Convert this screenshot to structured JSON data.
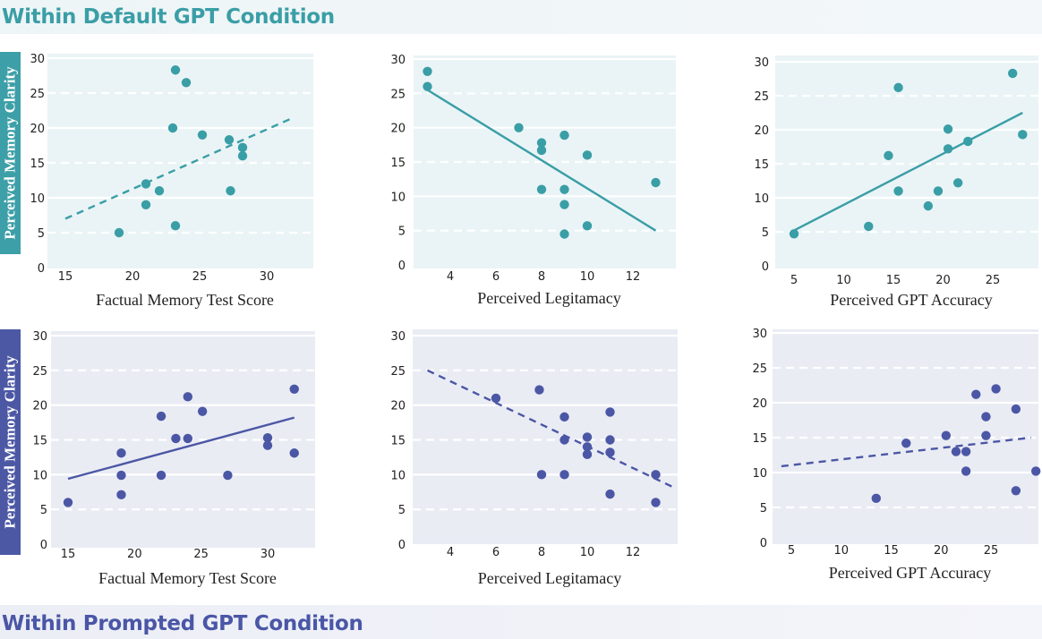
{
  "header": {
    "top_title": "Within Default GPT Condition",
    "bottom_title": "Within Prompted GPT Condition"
  },
  "row_labels": {
    "top": "Perceived Memory Clarity",
    "bottom": "Perceived Memory Clarity"
  },
  "colors": {
    "teal": "#3a9ea6",
    "blue": "#4b57a5",
    "teal_bg": "#eaf4f6",
    "blue_bg": "#eaecf4"
  },
  "chart_data": [
    {
      "type": "scatter",
      "condition": "Default GPT",
      "title": "",
      "xlabel": "Factual Memory Test Score",
      "ylabel": "Perceived Memory Clarity",
      "xlim": [
        14,
        34
      ],
      "ylim": [
        0,
        30
      ],
      "xticks": [
        15,
        20,
        25,
        30
      ],
      "xtick_labels": [
        "15",
        "20",
        "25",
        "30"
      ],
      "yticks": [
        0,
        5,
        10,
        15,
        20,
        25,
        30
      ],
      "ytick_labels": [
        "0",
        "5",
        "10",
        "15",
        "20",
        "25",
        "30"
      ],
      "grid": true,
      "trendline_style": "dashed",
      "trendline": {
        "x": [
          15,
          32
        ],
        "y": [
          7,
          21.5
        ]
      },
      "points": [
        [
          19,
          5
        ],
        [
          21,
          9
        ],
        [
          21,
          12
        ],
        [
          22,
          11
        ],
        [
          23,
          20
        ],
        [
          23.2,
          6
        ],
        [
          23.2,
          28.3
        ],
        [
          24,
          26.5
        ],
        [
          25.2,
          19
        ],
        [
          27.2,
          18.3
        ],
        [
          27.3,
          11
        ],
        [
          28.2,
          17.2
        ],
        [
          28.2,
          16
        ]
      ]
    },
    {
      "type": "scatter",
      "condition": "Default GPT",
      "title": "",
      "xlabel": "Perceived Legitamacy",
      "ylabel": "Perceived Memory Clarity",
      "xlim": [
        2.2,
        14
      ],
      "ylim": [
        0,
        30
      ],
      "xticks": [
        4,
        6,
        8,
        10,
        12
      ],
      "xtick_labels": [
        "4",
        "6",
        "8",
        "10",
        "12"
      ],
      "yticks": [
        0,
        5,
        10,
        15,
        20,
        25,
        30
      ],
      "ytick_labels": [
        "0",
        "5",
        "10",
        "15",
        "20",
        "25",
        "30"
      ],
      "grid": true,
      "trendline_style": "solid",
      "trendline": {
        "x": [
          3,
          13
        ],
        "y": [
          25.5,
          5
        ]
      },
      "points": [
        [
          3,
          28.2
        ],
        [
          3,
          26
        ],
        [
          7,
          20
        ],
        [
          8,
          17.8
        ],
        [
          8,
          16.7
        ],
        [
          8,
          11
        ],
        [
          9,
          18.9
        ],
        [
          9,
          11
        ],
        [
          9,
          8.8
        ],
        [
          9,
          4.5
        ],
        [
          10,
          16
        ],
        [
          10,
          5.7
        ],
        [
          13,
          12
        ]
      ]
    },
    {
      "type": "scatter",
      "condition": "Default GPT",
      "title": "",
      "xlabel": "Perceived GPT Accuracy",
      "ylabel": "Perceived Memory Clarity",
      "xlim": [
        3,
        29
      ],
      "ylim": [
        0,
        30
      ],
      "xticks": [
        5,
        10,
        15,
        20,
        25
      ],
      "xtick_labels": [
        "5",
        "10",
        "15",
        "20",
        "25"
      ],
      "yticks": [
        0,
        5,
        10,
        15,
        20,
        25,
        30
      ],
      "ytick_labels": [
        "0",
        "5",
        "10",
        "15",
        "20",
        "25",
        "30"
      ],
      "grid": true,
      "trendline_style": "solid",
      "trendline": {
        "x": [
          5,
          28
        ],
        "y": [
          5.2,
          22.5
        ]
      },
      "points": [
        [
          5,
          4.7
        ],
        [
          12.5,
          5.8
        ],
        [
          14.5,
          16.2
        ],
        [
          15.5,
          26.2
        ],
        [
          15.5,
          11
        ],
        [
          18.5,
          8.8
        ],
        [
          19.5,
          11
        ],
        [
          20.5,
          20.1
        ],
        [
          20.5,
          17.2
        ],
        [
          21.5,
          12.2
        ],
        [
          22.5,
          18.3
        ],
        [
          27,
          28.3
        ],
        [
          28,
          19.3
        ]
      ]
    },
    {
      "type": "scatter",
      "condition": "Prompted GPT",
      "title": "",
      "xlabel": "Factual Memory Test Score",
      "ylabel": "Perceived Memory Clarity",
      "xlim": [
        14,
        33.5
      ],
      "ylim": [
        0,
        30
      ],
      "xticks": [
        15,
        20,
        25,
        30
      ],
      "xtick_labels": [
        "15",
        "20",
        "25",
        "30"
      ],
      "yticks": [
        0,
        5,
        10,
        15,
        20,
        25,
        30
      ],
      "ytick_labels": [
        "0",
        "5",
        "10",
        "15",
        "20",
        "25",
        "30"
      ],
      "grid": true,
      "trendline_style": "solid",
      "trendline": {
        "x": [
          15,
          32
        ],
        "y": [
          9.4,
          18.2
        ]
      },
      "points": [
        [
          15,
          6
        ],
        [
          19,
          13.1
        ],
        [
          19,
          9.9
        ],
        [
          19,
          7.1
        ],
        [
          22,
          18.4
        ],
        [
          22,
          9.9
        ],
        [
          23.1,
          15.2
        ],
        [
          24,
          21.2
        ],
        [
          24,
          15.2
        ],
        [
          25.1,
          19.1
        ],
        [
          27,
          9.9
        ],
        [
          30,
          15.3
        ],
        [
          30,
          14.2
        ],
        [
          32,
          22.3
        ],
        [
          32,
          13.1
        ]
      ]
    },
    {
      "type": "scatter",
      "condition": "Prompted GPT",
      "title": "",
      "xlabel": "Perceived Legitamacy",
      "ylabel": "Perceived Memory Clarity",
      "xlim": [
        2.2,
        14
      ],
      "ylim": [
        0,
        30
      ],
      "xticks": [
        4,
        6,
        8,
        10,
        12
      ],
      "xtick_labels": [
        "4",
        "6",
        "8",
        "10",
        "12"
      ],
      "yticks": [
        0,
        5,
        10,
        15,
        20,
        25,
        30
      ],
      "ytick_labels": [
        "0",
        "5",
        "10",
        "15",
        "20",
        "25",
        "30"
      ],
      "grid": true,
      "trendline_style": "dashed",
      "trendline": {
        "x": [
          3,
          13.7
        ],
        "y": [
          25,
          8.3
        ]
      },
      "points": [
        [
          6,
          21
        ],
        [
          7.9,
          22.2
        ],
        [
          8,
          10
        ],
        [
          9,
          18.3
        ],
        [
          9,
          15
        ],
        [
          9,
          10
        ],
        [
          10,
          15.4
        ],
        [
          10,
          14
        ],
        [
          10,
          12.9
        ],
        [
          11,
          19
        ],
        [
          11,
          15
        ],
        [
          11,
          13.2
        ],
        [
          11,
          7.2
        ],
        [
          13,
          10
        ],
        [
          13,
          6
        ]
      ]
    },
    {
      "type": "scatter",
      "condition": "Prompted GPT",
      "title": "",
      "xlabel": "Perceived GPT Accuracy",
      "ylabel": "Perceived Memory Clarity",
      "xlim": [
        3,
        29.5
      ],
      "ylim": [
        0,
        30
      ],
      "xticks": [
        5,
        10,
        15,
        20,
        25
      ],
      "xtick_labels": [
        "5",
        "10",
        "15",
        "20",
        "25"
      ],
      "yticks": [
        0,
        5,
        10,
        15,
        20,
        25,
        30
      ],
      "ytick_labels": [
        "0",
        "5",
        "10",
        "15",
        "20",
        "25",
        "30"
      ],
      "grid": true,
      "trendline_style": "dashed",
      "trendline": {
        "x": [
          4,
          29
        ],
        "y": [
          10.9,
          15
        ]
      },
      "points": [
        [
          13.5,
          6.3
        ],
        [
          16.5,
          14.2
        ],
        [
          20.5,
          15.3
        ],
        [
          21.5,
          13
        ],
        [
          22.5,
          13
        ],
        [
          22.5,
          10.2
        ],
        [
          23.5,
          21.2
        ],
        [
          24.5,
          18
        ],
        [
          24.5,
          15.3
        ],
        [
          25.5,
          22
        ],
        [
          27.5,
          19.1
        ],
        [
          27.5,
          7.4
        ],
        [
          29.5,
          10.2
        ]
      ]
    }
  ]
}
